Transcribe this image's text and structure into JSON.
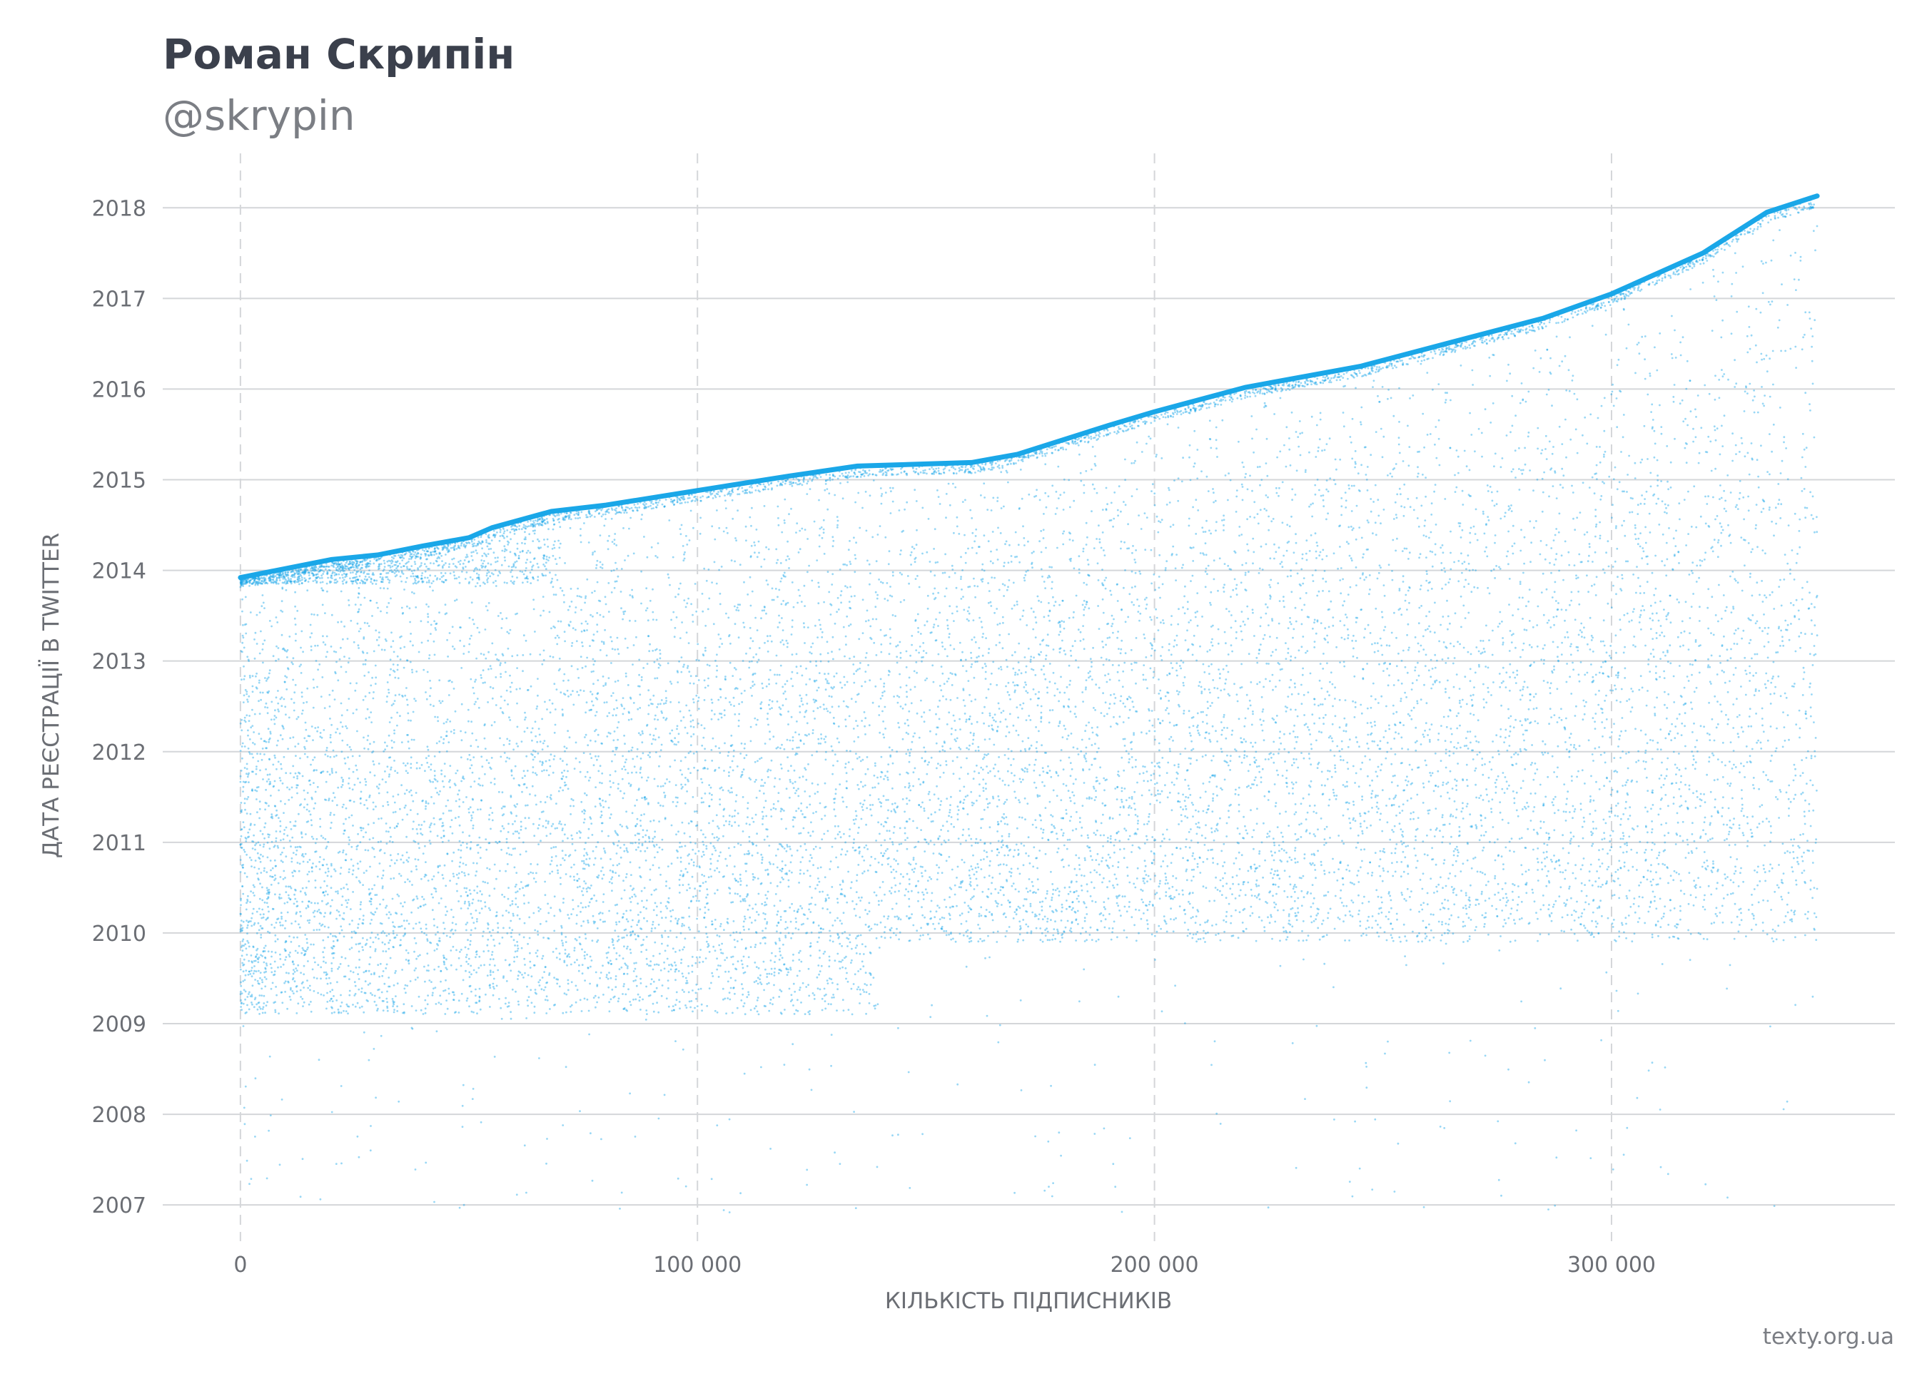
{
  "title": "Роман Скрипін",
  "subtitle": "@skrypin",
  "source": "texty.org.ua",
  "chart_data": {
    "type": "scatter",
    "xlabel": "КІЛЬКІСТЬ ПІДПИСНИКІВ",
    "ylabel": "ДАТА РЕЄСТРАЦІЇ В TWITTER",
    "xlim": [
      -17000,
      362000
    ],
    "ylim": [
      2006.6,
      2018.6
    ],
    "x_ticks": [
      0,
      100000,
      200000,
      300000
    ],
    "x_tick_labels": [
      "0",
      "100 000",
      "200 000",
      "300 000"
    ],
    "y_ticks": [
      2007,
      2008,
      2009,
      2010,
      2011,
      2012,
      2013,
      2014,
      2015,
      2016,
      2017,
      2018
    ],
    "y_tick_labels": [
      "2007",
      "2008",
      "2009",
      "2010",
      "2011",
      "2012",
      "2013",
      "2014",
      "2015",
      "2016",
      "2017",
      "2018"
    ],
    "point_color": "#1aa7e8",
    "grid": {
      "horizontal": "solid",
      "vertical": "dashed"
    },
    "upper_envelope": [
      {
        "x": 0,
        "y": 2013.92
      },
      {
        "x": 20000,
        "y": 2014.12
      },
      {
        "x": 30000,
        "y": 2014.17
      },
      {
        "x": 40000,
        "y": 2014.27
      },
      {
        "x": 50000,
        "y": 2014.36
      },
      {
        "x": 55000,
        "y": 2014.47
      },
      {
        "x": 68000,
        "y": 2014.65
      },
      {
        "x": 80000,
        "y": 2014.72
      },
      {
        "x": 100000,
        "y": 2014.88
      },
      {
        "x": 120000,
        "y": 2015.04
      },
      {
        "x": 135000,
        "y": 2015.15
      },
      {
        "x": 160000,
        "y": 2015.19
      },
      {
        "x": 170000,
        "y": 2015.28
      },
      {
        "x": 190000,
        "y": 2015.6
      },
      {
        "x": 200000,
        "y": 2015.75
      },
      {
        "x": 220000,
        "y": 2016.02
      },
      {
        "x": 245000,
        "y": 2016.25
      },
      {
        "x": 260000,
        "y": 2016.45
      },
      {
        "x": 285000,
        "y": 2016.78
      },
      {
        "x": 300000,
        "y": 2017.05
      },
      {
        "x": 320000,
        "y": 2017.5
      },
      {
        "x": 334000,
        "y": 2017.95
      },
      {
        "x": 345000,
        "y": 2018.13
      }
    ],
    "total_points_approx": 345000
  }
}
